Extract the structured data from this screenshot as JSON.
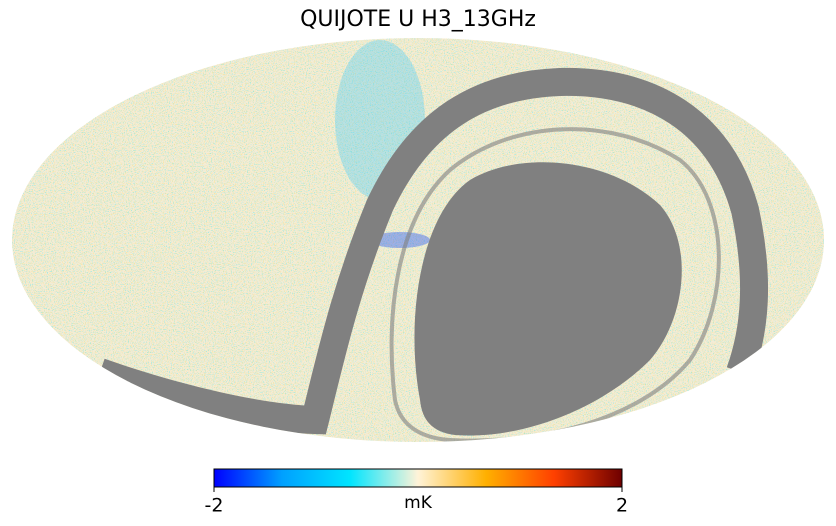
{
  "map": {
    "title": "QUIJOTE U H3_13GHz",
    "colorbar": {
      "lim": [
        -2,
        2
      ],
      "ticks": [
        -2,
        2
      ],
      "label": "mK",
      "colors": [
        "#0000ff",
        "#00a0ff",
        "#00e5ff",
        "#fff3d8",
        "#ffb000",
        "#ff4000",
        "#6e0000"
      ]
    }
  }
}
